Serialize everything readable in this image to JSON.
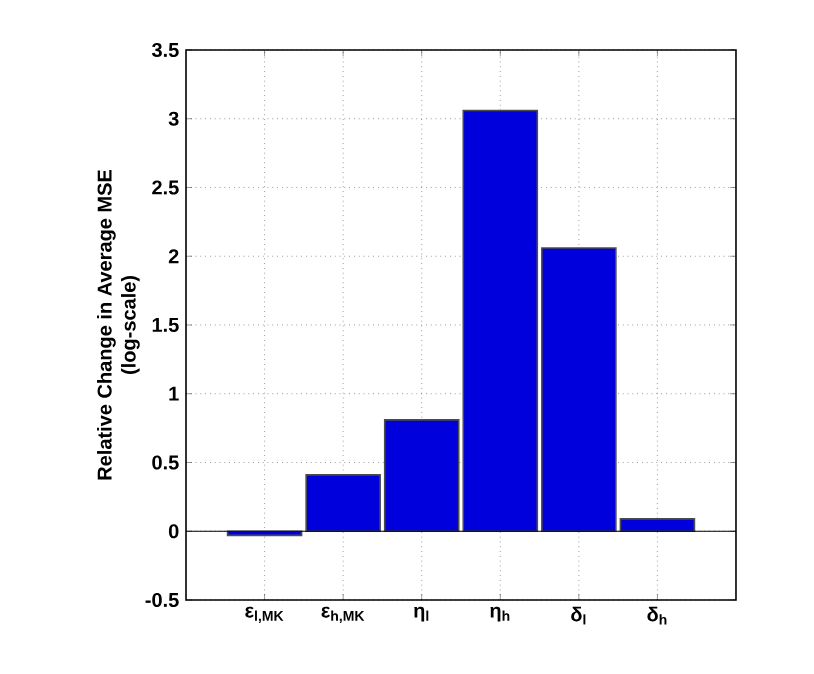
{
  "chart_data": {
    "type": "bar",
    "ylabel": "Relative Change in Average MSE (log-scale)",
    "categories": [
      "ε$_{l,MK}$",
      "ε$_{h,MK}$",
      "η$_{l}$",
      "η$_{h}$",
      "δ$_{l}$",
      "δ$_{h}$"
    ],
    "values": [
      -0.03,
      0.41,
      0.81,
      3.06,
      2.06,
      0.09
    ],
    "color": "#0000dd",
    "ylim": [
      -0.5,
      3.5
    ],
    "yticks": [
      -0.5,
      0,
      0.5,
      1,
      1.5,
      2,
      2.5,
      3,
      3.5
    ],
    "grid": true,
    "ref_lines": [
      {
        "axis": "y",
        "value": 0,
        "color": "#000000"
      }
    ]
  }
}
